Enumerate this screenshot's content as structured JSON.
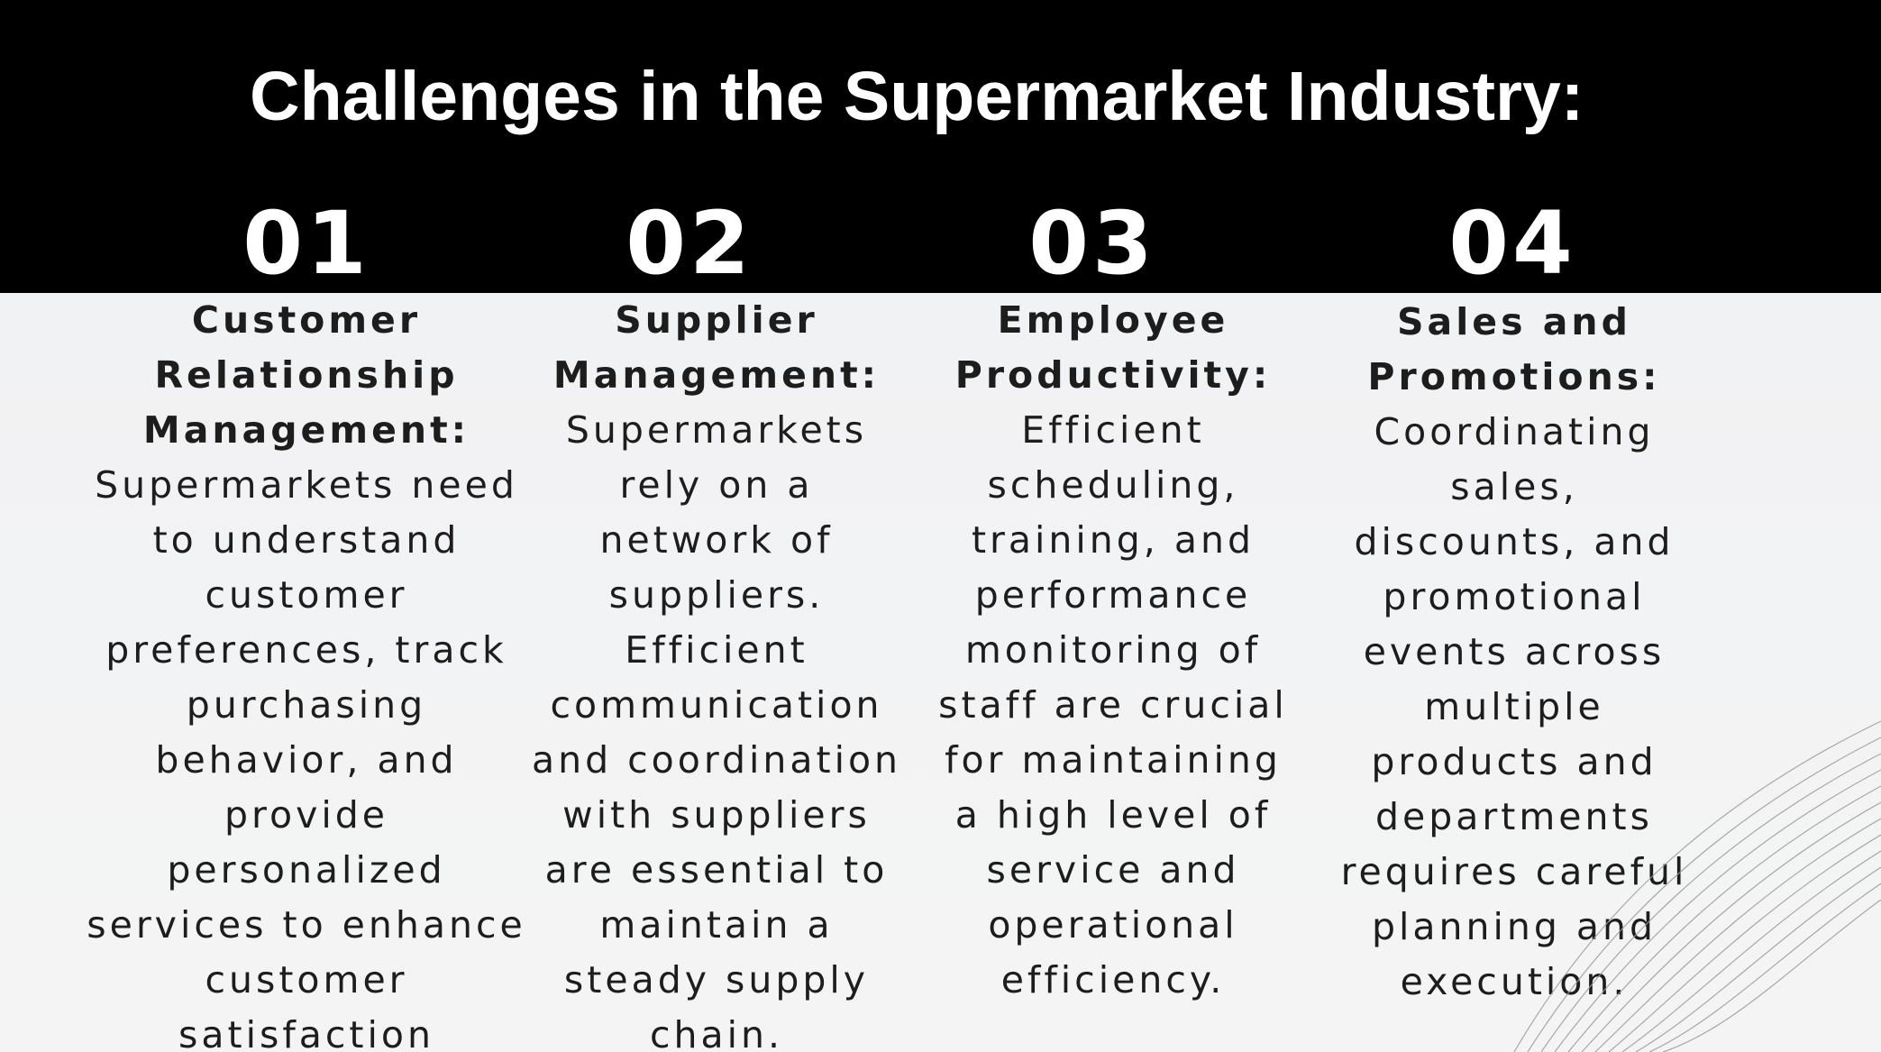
{
  "title": "Challenges in the Supermarket Industry:",
  "columns": [
    {
      "number": "01",
      "heading": "Customer Relationship Management:",
      "body": "Supermarkets need to understand customer preferences, track purchasing behavior, and provide personalized services to enhance customer satisfaction"
    },
    {
      "number": "02",
      "heading": "Supplier Management:",
      "body": "Supermarkets rely on a network of suppliers. Efficient communication and coordination with suppliers are essential to maintain a steady supply chain."
    },
    {
      "number": "03",
      "heading": "Employee Productivity:",
      "body": "Efficient scheduling, training, and performance monitoring of staff are crucial for maintaining a high level of service and operational efficiency."
    },
    {
      "number": "04",
      "heading": "Sales and Promotions:",
      "body": "Coordinating sales, discounts, and promotional events across multiple products and departments requires careful planning and execution."
    }
  ],
  "colors": {
    "header_bg": "#000000",
    "header_text": "#ffffff",
    "body_bg": "#f3f3f4",
    "body_text": "#1d1d1d"
  }
}
